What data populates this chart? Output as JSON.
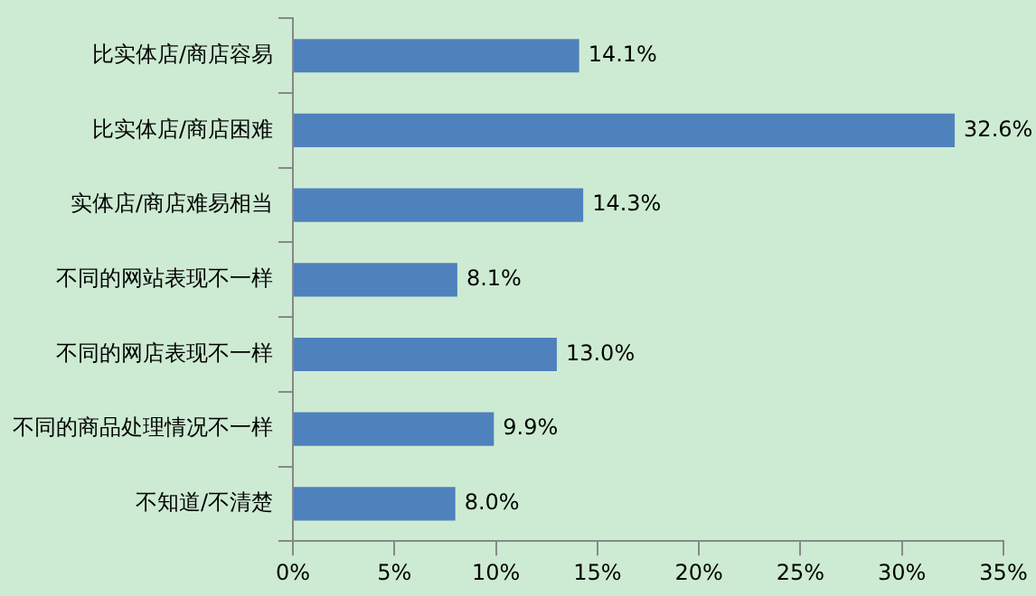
{
  "chart_data": {
    "type": "bar",
    "orientation": "horizontal",
    "categories": [
      "比实体店/商店容易",
      "比实体店/商店困难",
      "实体店/商店难易相当",
      "不同的网站表现不一样",
      "不同的网店表现不一样",
      "不同的商品处理情况不一样",
      "不知道/不清楚"
    ],
    "values": [
      14.1,
      32.6,
      14.3,
      8.1,
      13.0,
      9.9,
      8.0
    ],
    "value_labels": [
      "14.1%",
      "32.6%",
      "14.3%",
      "8.1%",
      "13.0%",
      "9.9%",
      "8.0%"
    ],
    "color": "#4f81bd",
    "xlim": [
      0,
      35
    ],
    "xticks": [
      {
        "value": 0,
        "label": "0%"
      },
      {
        "value": 5,
        "label": "5%"
      },
      {
        "value": 10,
        "label": "10%"
      },
      {
        "value": 15,
        "label": "15%"
      },
      {
        "value": 20,
        "label": "20%"
      },
      {
        "value": 25,
        "label": "25%"
      },
      {
        "value": 30,
        "label": "30%"
      },
      {
        "value": 35,
        "label": "35%"
      }
    ],
    "grid": false,
    "legend": false
  }
}
